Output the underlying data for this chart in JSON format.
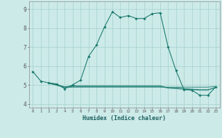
{
  "xlabel": "Humidex (Indice chaleur)",
  "bg_color": "#cceae8",
  "grid_color": "#aad4d0",
  "line_color": "#1a7a6e",
  "xlim": [
    -0.5,
    23.5
  ],
  "ylim": [
    3.8,
    9.4
  ],
  "yticks": [
    4,
    5,
    6,
    7,
    8,
    9
  ],
  "xticks": [
    0,
    1,
    2,
    3,
    4,
    5,
    6,
    7,
    8,
    9,
    10,
    11,
    12,
    13,
    14,
    15,
    16,
    17,
    18,
    19,
    20,
    21,
    22,
    23
  ],
  "main_x": [
    0,
    1,
    2,
    3,
    4,
    5,
    6,
    7,
    8,
    9,
    10,
    11,
    12,
    13,
    14,
    15,
    16,
    17,
    18,
    19,
    20,
    21,
    22,
    23
  ],
  "main_y": [
    5.7,
    5.2,
    5.1,
    5.05,
    4.8,
    5.0,
    5.25,
    6.5,
    7.1,
    8.05,
    8.85,
    8.55,
    8.65,
    8.5,
    8.5,
    8.75,
    8.8,
    7.0,
    5.75,
    4.75,
    4.72,
    4.45,
    4.45,
    4.9
  ],
  "series2_x": [
    2,
    3,
    4,
    5,
    6,
    7,
    8,
    9,
    10,
    11,
    12,
    13,
    14,
    15,
    16,
    17,
    18,
    19,
    20,
    21,
    22,
    23
  ],
  "series2_y": [
    5.1,
    5.0,
    4.9,
    4.95,
    4.95,
    4.95,
    4.95,
    4.95,
    4.95,
    4.95,
    4.95,
    4.95,
    4.95,
    4.95,
    4.95,
    4.85,
    4.85,
    4.8,
    4.78,
    4.75,
    4.75,
    4.85
  ],
  "series3_x": [
    2,
    3,
    4,
    5,
    6,
    7,
    8,
    9,
    10,
    11,
    12,
    13,
    14,
    15,
    16,
    17,
    18,
    19,
    20,
    21,
    22,
    23
  ],
  "series3_y": [
    5.12,
    5.02,
    4.88,
    4.92,
    4.92,
    4.92,
    4.92,
    4.92,
    4.92,
    4.92,
    4.92,
    4.92,
    4.92,
    4.92,
    4.92,
    4.83,
    4.8,
    4.77,
    4.75,
    4.72,
    4.72,
    4.88
  ],
  "series4_x": [
    2,
    3,
    4,
    5,
    6,
    7,
    8,
    9,
    10,
    11,
    12,
    13,
    14,
    15,
    16,
    17,
    18,
    19,
    20,
    21,
    22,
    23
  ],
  "series4_y": [
    5.08,
    4.98,
    4.85,
    4.88,
    4.88,
    4.88,
    4.88,
    4.88,
    4.88,
    4.88,
    4.88,
    4.88,
    4.88,
    4.88,
    4.88,
    4.88,
    4.88,
    4.88,
    4.88,
    4.88,
    4.88,
    4.92
  ]
}
